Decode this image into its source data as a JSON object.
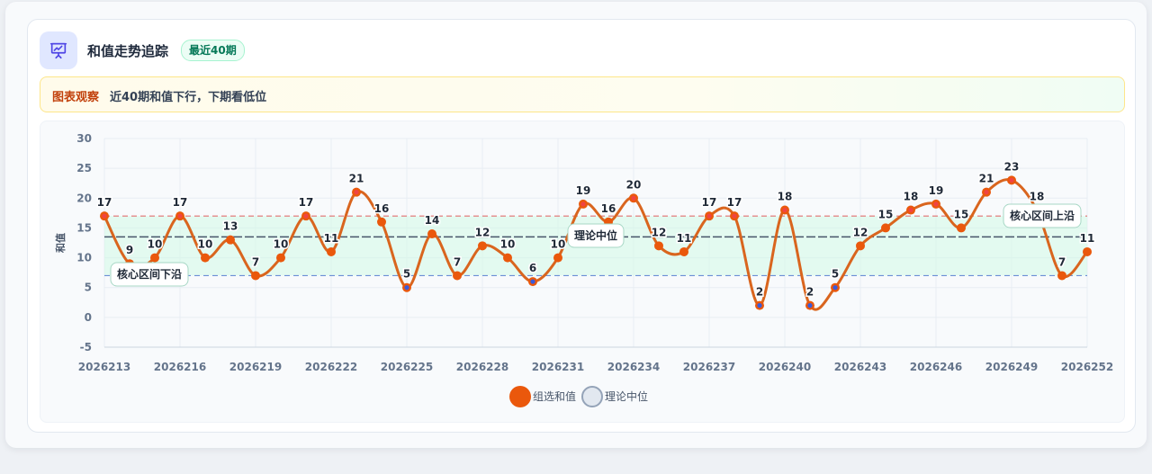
{
  "header": {
    "title": "和值走势追踪",
    "badge": "最近40期",
    "icon": "presentation-chart-icon"
  },
  "observation": {
    "label": "图表观察",
    "text": "近40期和值下行，下期看低位"
  },
  "chart_data": {
    "type": "line",
    "x": [
      "2026213",
      "2026214",
      "2026215",
      "2026216",
      "2026217",
      "2026218",
      "2026219",
      "2026220",
      "2026221",
      "2026222",
      "2026223",
      "2026224",
      "2026225",
      "2026226",
      "2026227",
      "2026228",
      "2026229",
      "2026230",
      "2026231",
      "2026232",
      "2026233",
      "2026234",
      "2026235",
      "2026236",
      "2026237",
      "2026238",
      "2026239",
      "2026240",
      "2026241",
      "2026242",
      "2026243",
      "2026244",
      "2026245",
      "2026246",
      "2026247",
      "2026248",
      "2026249",
      "2026250",
      "2026251",
      "2026252"
    ],
    "x_tick_labels": [
      "2026213",
      "2026216",
      "2026219",
      "2026222",
      "2026225",
      "2026228",
      "2026231",
      "2026234",
      "2026237",
      "2026240",
      "2026243",
      "2026246",
      "2026249",
      "2026252"
    ],
    "series": [
      {
        "name": "组选和值",
        "color": "#ea580c",
        "line_color": "#d9651e",
        "values": [
          17,
          9,
          10,
          17,
          10,
          13,
          7,
          10,
          17,
          11,
          21,
          16,
          5,
          14,
          7,
          12,
          10,
          6,
          10,
          19,
          16,
          20,
          12,
          11,
          17,
          17,
          2,
          18,
          2,
          5,
          12,
          15,
          18,
          19,
          15,
          21,
          23,
          18,
          7,
          11
        ]
      },
      {
        "name": "理论中位",
        "color": "#475569",
        "value": 13.5
      }
    ],
    "ylabel": "和值",
    "ylim": [
      -5,
      30
    ],
    "yticks": [
      -5,
      0,
      5,
      10,
      15,
      20,
      25,
      30
    ],
    "core_band": {
      "low": 7,
      "high": 17,
      "low_label": "核心区间下沿",
      "high_label": "核心区间上沿"
    },
    "median_label": "理论中位",
    "colors": {
      "point_high": "#ef4444",
      "point_low": "#3b5bdb",
      "band_fill": "#d1fae5",
      "low_line": "#6b8fd6",
      "high_line": "#e27070"
    },
    "legend": {
      "position": "bottom",
      "items": [
        "组选和值",
        "理论中位"
      ]
    },
    "grid": true
  }
}
